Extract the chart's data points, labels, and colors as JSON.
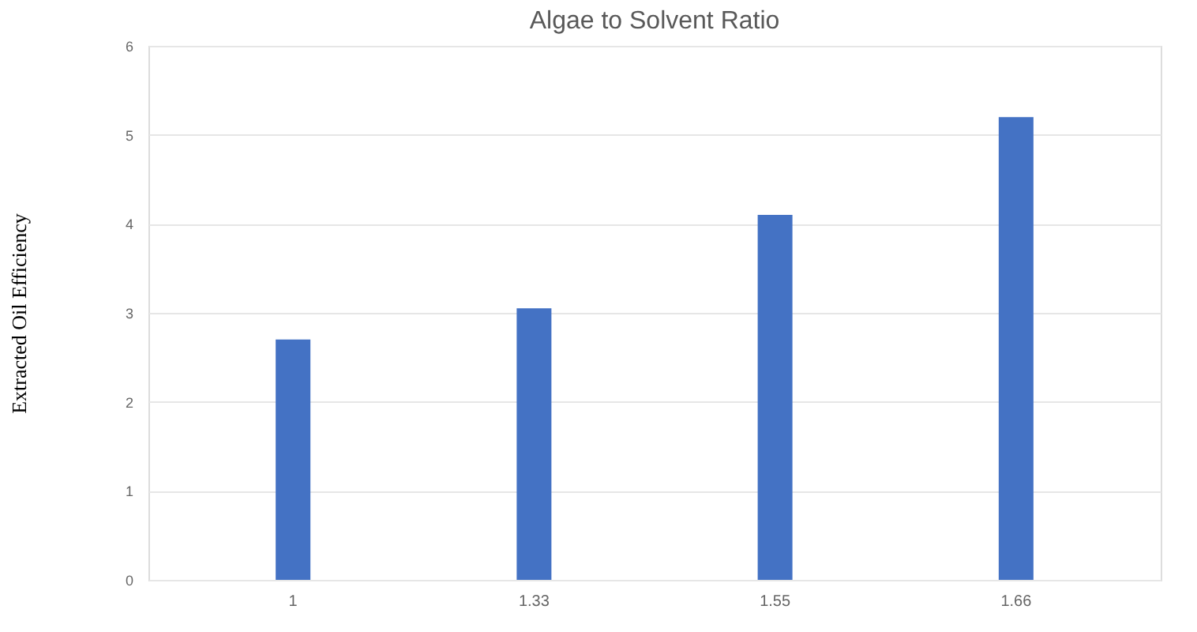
{
  "chart_data": {
    "type": "bar",
    "title": "Algae to Solvent Ratio",
    "ylabel": "Extracted Oil Efficiency",
    "categories": [
      "1",
      "1.33",
      "1.55",
      "1.66"
    ],
    "values": [
      2.7,
      3.05,
      4.1,
      5.2
    ],
    "color": "#4472c4",
    "ylim": [
      0,
      6
    ],
    "yticks": [
      0,
      1,
      2,
      3,
      4,
      5,
      6
    ],
    "grid": "y"
  }
}
